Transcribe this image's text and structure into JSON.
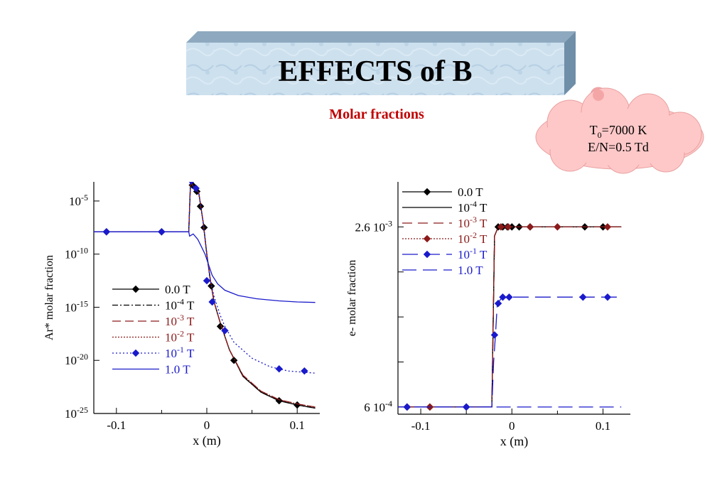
{
  "header": {
    "title": "EFFECTS of B",
    "subtitle": "Molar fractions"
  },
  "callout": {
    "t_main": "T",
    "t_sub": "0",
    "t_rest": "=7000 K",
    "line2": "E/N=0.5 Td"
  },
  "colors": {
    "black": "#000000",
    "darkred": "#8b1a1a",
    "blue": "#1a1acc",
    "banner": "#cfe2f0",
    "cloud": "#ffc8c8",
    "subtitle": "#c00000"
  },
  "chart_data": [
    {
      "type": "line",
      "xlabel": "x (m)",
      "ylabel": "Ar*  molar fraction",
      "y_scale": "log",
      "xlim": [
        -0.125,
        0.125
      ],
      "ylim_exp": [
        -25,
        -3.2
      ],
      "xticks": [
        {
          "v": -0.1,
          "label": "-0.1"
        },
        {
          "v": 0,
          "label": "0"
        },
        {
          "v": 0.1,
          "label": "0.1"
        }
      ],
      "yticks": [
        {
          "exp": -5,
          "base": "10",
          "sup": "-5"
        },
        {
          "exp": -10,
          "base": "10",
          "sup": "-10"
        },
        {
          "exp": -15,
          "base": "10",
          "sup": "-15"
        },
        {
          "exp": -20,
          "base": "10",
          "sup": "-20"
        },
        {
          "exp": -25,
          "base": "10",
          "sup": "-25"
        }
      ],
      "legend_placement": "left",
      "series": [
        {
          "id": "c1s1",
          "name": "0.0 T",
          "label_base": "0.0 T",
          "label_sup": "",
          "color": "#000000",
          "dash": "",
          "marker": "diamond",
          "points": [
            [
              -0.125,
              -7.9
            ],
            [
              -0.02,
              -7.9
            ],
            [
              -0.018,
              -3.2
            ],
            [
              -0.013,
              -3.9
            ],
            [
              -0.009,
              -4.2
            ],
            [
              -0.004,
              -7
            ],
            [
              0,
              -10
            ],
            [
              0.004,
              -12.5
            ],
            [
              0.008,
              -14.5
            ],
            [
              0.015,
              -16.5
            ],
            [
              0.025,
              -19
            ],
            [
              0.04,
              -21.5
            ],
            [
              0.06,
              -23
            ],
            [
              0.08,
              -23.8
            ],
            [
              0.1,
              -24.2
            ],
            [
              0.12,
              -24.5
            ]
          ],
          "markers": [
            [
              -0.111,
              -7.9
            ],
            [
              -0.05,
              -7.9
            ],
            [
              -0.016,
              -3.5
            ],
            [
              -0.011,
              -4.1
            ],
            [
              -0.007,
              -5.5
            ],
            [
              -0.003,
              -7.5
            ],
            [
              0.005,
              -13
            ],
            [
              0.015,
              -16.8
            ],
            [
              0.03,
              -20
            ],
            [
              0.08,
              -23.8
            ],
            [
              0.1,
              -24.2
            ]
          ]
        },
        {
          "id": "c1s2",
          "name": "10^-4 T",
          "label_base": "10",
          "label_sup": "-4",
          "label_tail": " T",
          "color": "#000000",
          "dash": "8,3,2,3",
          "marker": "",
          "points": [
            [
              -0.125,
              -7.9
            ],
            [
              -0.02,
              -7.9
            ],
            [
              -0.018,
              -3.2
            ],
            [
              -0.013,
              -3.9
            ],
            [
              -0.009,
              -4.2
            ],
            [
              -0.004,
              -7
            ],
            [
              0,
              -10
            ],
            [
              0.004,
              -12.5
            ],
            [
              0.008,
              -14.5
            ],
            [
              0.015,
              -16.5
            ],
            [
              0.025,
              -19
            ],
            [
              0.04,
              -21.5
            ],
            [
              0.06,
              -23
            ],
            [
              0.08,
              -23.8
            ],
            [
              0.1,
              -24.2
            ],
            [
              0.12,
              -24.5
            ]
          ],
          "markers": []
        },
        {
          "id": "c1s3",
          "name": "10^-3 T",
          "label_base": "10",
          "label_sup": "-3",
          "label_tail": " T",
          "color": "#8b1a1a",
          "dash": "12,6",
          "marker": "",
          "points": [
            [
              -0.125,
              -7.9
            ],
            [
              -0.02,
              -7.9
            ],
            [
              -0.018,
              -3.2
            ],
            [
              -0.013,
              -3.9
            ],
            [
              -0.009,
              -4.2
            ],
            [
              -0.004,
              -7
            ],
            [
              0,
              -10
            ],
            [
              0.004,
              -12.5
            ],
            [
              0.008,
              -14.5
            ],
            [
              0.015,
              -16.5
            ],
            [
              0.025,
              -19
            ],
            [
              0.04,
              -21.4
            ],
            [
              0.06,
              -22.9
            ],
            [
              0.08,
              -23.7
            ],
            [
              0.1,
              -24.1
            ],
            [
              0.12,
              -24.4
            ]
          ],
          "markers": []
        },
        {
          "id": "c1s4",
          "name": "10^-2 T",
          "label_base": "10",
          "label_sup": "-2",
          "label_tail": " T",
          "color": "#8b1a1a",
          "dash": "2,2",
          "marker": "",
          "points": [
            [
              -0.125,
              -7.9
            ],
            [
              -0.02,
              -7.9
            ],
            [
              -0.018,
              -3.2
            ],
            [
              -0.013,
              -3.9
            ],
            [
              -0.009,
              -4.2
            ],
            [
              -0.004,
              -7
            ],
            [
              0,
              -10
            ],
            [
              0.004,
              -12.5
            ],
            [
              0.008,
              -14.5
            ],
            [
              0.015,
              -16.5
            ],
            [
              0.025,
              -19
            ],
            [
              0.04,
              -21.4
            ],
            [
              0.06,
              -22.9
            ],
            [
              0.08,
              -23.7
            ],
            [
              0.1,
              -24.1
            ],
            [
              0.12,
              -24.4
            ]
          ],
          "markers": []
        },
        {
          "id": "c1s5",
          "name": "10^-1 T",
          "label_base": "10",
          "label_sup": "-1",
          "label_tail": " T",
          "color": "#1a1acc",
          "dash": "2,3",
          "marker": "diamond",
          "points": [
            [
              -0.125,
              -7.9
            ],
            [
              -0.02,
              -7.9
            ],
            [
              -0.018,
              -3.2
            ],
            [
              -0.013,
              -3.9
            ],
            [
              -0.009,
              -4.2
            ],
            [
              -0.004,
              -7
            ],
            [
              0,
              -10
            ],
            [
              0.003,
              -12
            ],
            [
              0.008,
              -14
            ],
            [
              0.015,
              -15.8
            ],
            [
              0.02,
              -16.8
            ],
            [
              0.03,
              -18.3
            ],
            [
              0.05,
              -19.8
            ],
            [
              0.07,
              -20.6
            ],
            [
              0.09,
              -21
            ],
            [
              0.12,
              -21.2
            ]
          ],
          "markers": [
            [
              -0.111,
              -7.9
            ],
            [
              -0.05,
              -7.9
            ],
            [
              -0.017,
              -3.1
            ],
            [
              -0.012,
              -3.8
            ],
            [
              0.0,
              -12.5
            ],
            [
              0.006,
              -14.5
            ],
            [
              0.02,
              -17.2
            ],
            [
              0.08,
              -20.8
            ],
            [
              0.108,
              -21
            ]
          ]
        },
        {
          "id": "c1s6",
          "name": "1.0 T",
          "label_base": "1.0 T",
          "label_sup": "",
          "color": "#1a1acc",
          "dash": "",
          "marker": "",
          "points": [
            [
              -0.125,
              -7.9
            ],
            [
              -0.02,
              -7.9
            ],
            [
              -0.019,
              -8.3
            ],
            [
              -0.015,
              -8.1
            ],
            [
              -0.01,
              -8.6
            ],
            [
              -0.006,
              -9.3
            ],
            [
              -0.002,
              -10
            ],
            [
              0.002,
              -11
            ],
            [
              0.006,
              -12
            ],
            [
              0.012,
              -12.8
            ],
            [
              0.02,
              -13.4
            ],
            [
              0.035,
              -13.9
            ],
            [
              0.055,
              -14.2
            ],
            [
              0.08,
              -14.4
            ],
            [
              0.1,
              -14.5
            ],
            [
              0.12,
              -14.55
            ]
          ],
          "markers": []
        }
      ]
    },
    {
      "type": "line",
      "xlabel": "x (m)",
      "ylabel": "e- molar fraction",
      "y_scale": "linear",
      "xlim": [
        -0.125,
        0.13
      ],
      "ylim": [
        0.00052,
        0.0031
      ],
      "xticks": [
        {
          "v": -0.1,
          "label": "-0.1"
        },
        {
          "v": 0,
          "label": "0"
        },
        {
          "v": 0.1,
          "label": "0.1"
        }
      ],
      "yticks": [
        {
          "v": 0.0026,
          "base": "2.6 10",
          "sup": "-3"
        },
        {
          "v": 0.0006,
          "base": "6 10",
          "sup": "-4"
        }
      ],
      "yminor": [
        0.0021,
        0.0016,
        0.0011
      ],
      "legend_placement": "top-left",
      "series": [
        {
          "id": "c2s1",
          "name": "0.0 T",
          "label_base": "0.0 T",
          "label_sup": "",
          "color": "#000000",
          "dash": "",
          "marker": "diamond",
          "points": [
            [
              -0.13,
              0.0006
            ],
            [
              -0.022,
              0.0006
            ],
            [
              -0.019,
              0.0025
            ],
            [
              -0.015,
              0.0026
            ],
            [
              -0.01,
              0.0026
            ],
            [
              0.12,
              0.0026
            ]
          ],
          "markers": [
            [
              -0.115,
              0.0006
            ],
            [
              -0.09,
              0.0006
            ],
            [
              -0.05,
              0.0006
            ],
            [
              -0.015,
              0.0026
            ],
            [
              -0.01,
              0.0026
            ],
            [
              -0.005,
              0.0026
            ],
            [
              0.0,
              0.0026
            ],
            [
              0.008,
              0.0026
            ],
            [
              0.02,
              0.0026
            ],
            [
              0.08,
              0.0026
            ],
            [
              0.1,
              0.0026
            ]
          ]
        },
        {
          "id": "c2s2",
          "name": "10^-4 T",
          "label_base": "10",
          "label_sup": "-4",
          "label_tail": " T",
          "color": "#000000",
          "dash": "",
          "marker": "",
          "points": [
            [
              -0.13,
              0.0006
            ],
            [
              -0.022,
              0.0006
            ],
            [
              -0.019,
              0.0025
            ],
            [
              -0.015,
              0.0026
            ],
            [
              -0.01,
              0.0026
            ],
            [
              0.12,
              0.0026
            ]
          ],
          "markers": []
        },
        {
          "id": "c2s3",
          "name": "10^-3 T",
          "label_base": "10",
          "label_sup": "-3",
          "label_tail": " T",
          "color": "#8b1a1a",
          "dash": "14,8",
          "marker": "",
          "points": [
            [
              -0.13,
              0.0006
            ],
            [
              -0.022,
              0.0006
            ],
            [
              -0.019,
              0.0025
            ],
            [
              -0.015,
              0.0026
            ],
            [
              -0.01,
              0.0026
            ],
            [
              0.12,
              0.0026
            ]
          ],
          "markers": []
        },
        {
          "id": "c2s4",
          "name": "10^-2 T",
          "label_base": "10",
          "label_sup": "-2",
          "label_tail": " T",
          "color": "#8b1a1a",
          "dash": "2,2",
          "marker": "diamond",
          "points": [
            [
              -0.13,
              0.0006
            ],
            [
              -0.022,
              0.0006
            ],
            [
              -0.019,
              0.0025
            ],
            [
              -0.015,
              0.0026
            ],
            [
              -0.01,
              0.0026
            ],
            [
              0.12,
              0.0026
            ]
          ],
          "markers": [
            [
              -0.115,
              0.0006
            ],
            [
              -0.09,
              0.0006
            ],
            [
              -0.012,
              0.0026
            ],
            [
              -0.004,
              0.0026
            ],
            [
              0.02,
              0.0026
            ],
            [
              0.05,
              0.0026
            ],
            [
              0.105,
              0.0026
            ]
          ]
        },
        {
          "id": "c2s5",
          "name": "10^-1 T",
          "label_base": "10",
          "label_sup": "-1",
          "label_tail": " T",
          "color": "#1a1acc",
          "dash": "22,9",
          "marker": "diamond",
          "points": [
            [
              -0.13,
              0.0006
            ],
            [
              -0.022,
              0.0006
            ],
            [
              -0.02,
              0.0011
            ],
            [
              -0.018,
              0.0014
            ],
            [
              -0.016,
              0.00175
            ],
            [
              -0.012,
              0.0018
            ],
            [
              -0.005,
              0.00182
            ],
            [
              0.12,
              0.00182
            ]
          ],
          "markers": [
            [
              -0.115,
              0.0006
            ],
            [
              -0.05,
              0.0006
            ],
            [
              -0.019,
              0.0014
            ],
            [
              -0.015,
              0.00175
            ],
            [
              -0.01,
              0.00182
            ],
            [
              -0.003,
              0.00182
            ],
            [
              0.078,
              0.00182
            ],
            [
              0.105,
              0.00182
            ]
          ]
        },
        {
          "id": "c2s6",
          "name": "1.0 T",
          "label_base": "1.0 T",
          "label_sup": "",
          "color": "#1a1acc",
          "dash": "20,9",
          "marker": "",
          "points": [
            [
              -0.13,
              0.0006
            ],
            [
              0.12,
              0.0006
            ]
          ],
          "markers": []
        }
      ]
    }
  ]
}
